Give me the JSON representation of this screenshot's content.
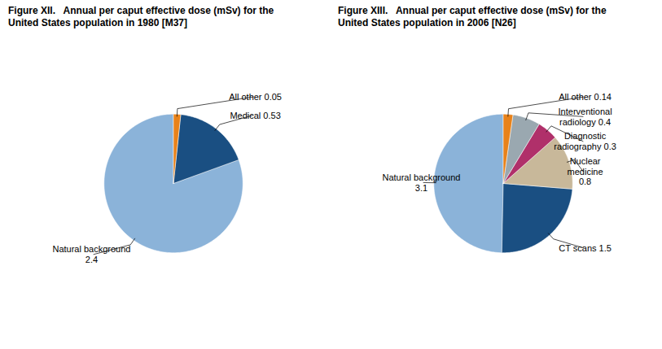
{
  "chart_data": [
    {
      "type": "pie",
      "title": "Figure XII.   Annual per caput effective dose (mSv) for the\nUnited States population in 1980 [M37]",
      "categories": [
        "Natural background\n2.4",
        "Medical 0.53",
        "All other 0.05"
      ],
      "values": [
        2.4,
        0.53,
        0.05
      ],
      "colors": [
        "#8bb3d9",
        "#1a4f82",
        "#e8821a"
      ]
    },
    {
      "type": "pie",
      "title": "Figure XIII.   Annual per caput effective dose (mSv) for the\nUnited States population in 2006 [N26]",
      "categories": [
        "Natural background\n3.1",
        "CT scans 1.5",
        "Nuclear\nmedicine\n0.8",
        "Diagnostic\nradiography 0.3",
        "Interventional\nradiology 0.4",
        "All other 0.14"
      ],
      "values": [
        3.1,
        1.5,
        0.8,
        0.3,
        0.4,
        0.14
      ],
      "colors": [
        "#8bb3d9",
        "#1a4f82",
        "#c8b89a",
        "#b0306a",
        "#9aa8b0",
        "#e8821a"
      ]
    }
  ]
}
